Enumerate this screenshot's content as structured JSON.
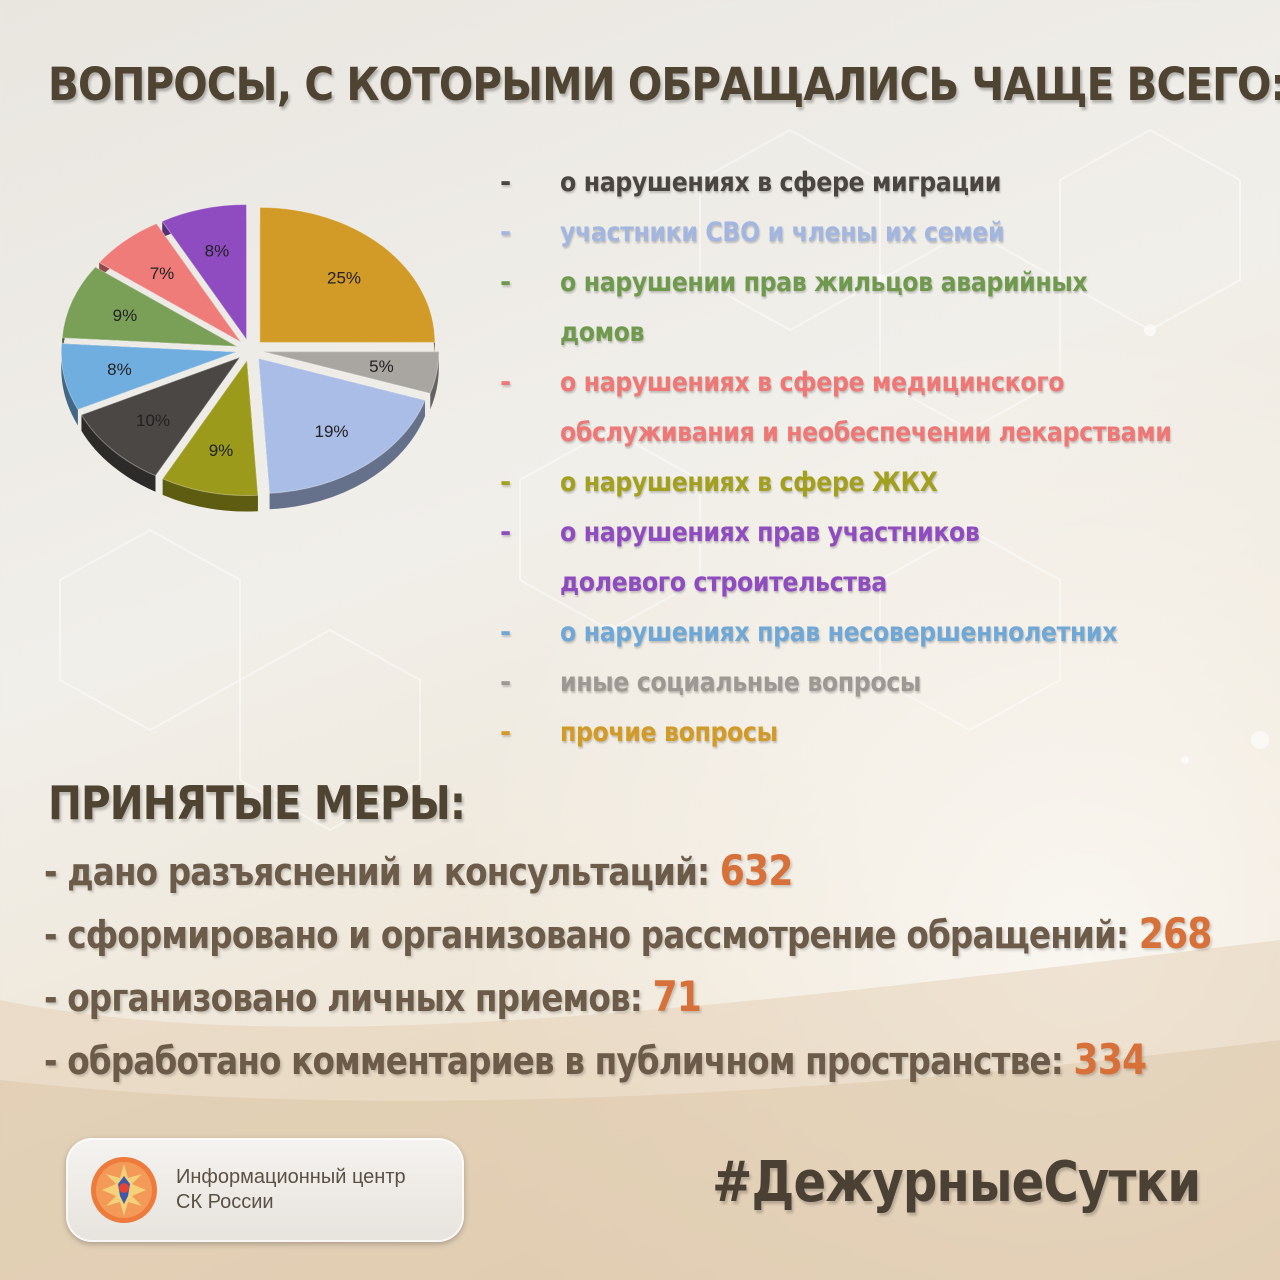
{
  "title": "ВОПРОСЫ, С КОТОРЫМИ ОБРАЩАЛИСЬ ЧАЩЕ ВСЕГО:",
  "chart_data": {
    "type": "pie",
    "title": "",
    "slices": [
      {
        "label": "прочие вопросы",
        "value": 25,
        "text": "25%",
        "color": "#d29a26"
      },
      {
        "label": "иные социальные вопросы",
        "value": 5,
        "text": "5%",
        "color": "#a9a5a1"
      },
      {
        "label": "участники СВО и члены их семей",
        "value": 19,
        "text": "19%",
        "color": "#a9bde6"
      },
      {
        "label": "о нарушениях в сфере ЖКХ",
        "value": 9,
        "text": "9%",
        "color": "#9c9a1a"
      },
      {
        "label": "о нарушениях в сфере миграции",
        "value": 10,
        "text": "10%",
        "color": "#4b4745"
      },
      {
        "label": "о нарушениях прав несовершеннолетних",
        "value": 8,
        "text": "8%",
        "color": "#6faede"
      },
      {
        "label": "о нарушении прав жильцов аварийных домов",
        "value": 9,
        "text": "9%",
        "color": "#7aa058"
      },
      {
        "label": "о нарушениях в сфере медицинского обслуживания и необеспечении лекарствами",
        "value": 7,
        "text": "7%",
        "color": "#f07c7a"
      },
      {
        "label": "о нарушениях прав участников долевого строительства",
        "value": 8,
        "text": "8%",
        "color": "#8f4cc0"
      }
    ]
  },
  "legend": [
    {
      "dash": "-",
      "lines": [
        "о нарушениях в сфере миграции"
      ],
      "color": "#4a4540"
    },
    {
      "dash": "-",
      "lines": [
        "участники СВО и члены их семей"
      ],
      "color": "#a2b6e0"
    },
    {
      "dash": "-",
      "lines": [
        "о нарушении прав жильцов аварийных",
        "домов"
      ],
      "color": "#6f9a4e"
    },
    {
      "dash": "-",
      "lines": [
        "о нарушениях в сфере медицинского",
        "обслуживания и необеспечении лекарствами"
      ],
      "color": "#ef7775"
    },
    {
      "dash": "-",
      "lines": [
        "о нарушениях в сфере ЖКХ"
      ],
      "color": "#a3a020"
    },
    {
      "dash": "-",
      "lines": [
        "о нарушениях прав участников",
        "долевого строительства"
      ],
      "color": "#8f4cc0"
    },
    {
      "dash": "-",
      "lines": [
        "о нарушениях прав несовершеннолетних"
      ],
      "color": "#6fa8d6"
    },
    {
      "dash": "-",
      "lines": [
        "иные социальные вопросы"
      ],
      "color": "#9d9893"
    },
    {
      "dash": "-",
      "lines": [
        "прочие вопросы"
      ],
      "color": "#d29a26"
    }
  ],
  "measures": {
    "title": "ПРИНЯТЫЕ МЕРЫ:",
    "items": [
      {
        "text": "- дано разъяснений и консультаций: ",
        "value": "632"
      },
      {
        "text": "- сформировано и организовано рассмотрение обращений: ",
        "value": "268"
      },
      {
        "text": "- организовано личных приемов: ",
        "value": "71"
      },
      {
        "text": "- обработано комментариев в публичном пространстве: ",
        "value": "334"
      }
    ]
  },
  "badge": {
    "org_line1": "Информационный центр",
    "org_line2": "СК России",
    "logo_icon": "eagle-emblem-icon"
  },
  "hashtag": "#ДежурныеСутки"
}
